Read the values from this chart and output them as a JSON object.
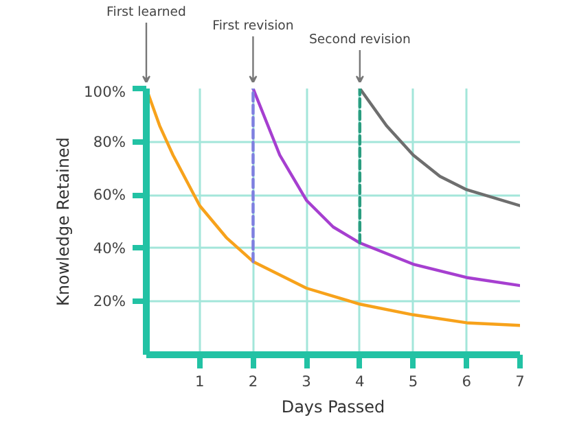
{
  "chart_data": {
    "type": "line",
    "xlabel": "Days Passed",
    "ylabel": "Knowledge Retained",
    "xlim": [
      0,
      7
    ],
    "ylim": [
      0,
      100
    ],
    "xticks": [
      1,
      2,
      3,
      4,
      5,
      6,
      7
    ],
    "yticks": [
      {
        "value": 20,
        "label": "20%"
      },
      {
        "value": 40,
        "label": "40%"
      },
      {
        "value": 60,
        "label": "60%"
      },
      {
        "value": 80,
        "label": "80%"
      },
      {
        "value": 100,
        "label": "100%"
      }
    ],
    "grid": true,
    "series": [
      {
        "color": "#f7a21b",
        "x": [
          0,
          0.25,
          0.5,
          1,
          1.5,
          2,
          3,
          4,
          5,
          6,
          7
        ],
        "values": [
          100,
          86,
          75,
          56,
          44,
          35,
          25,
          19,
          15,
          12,
          11
        ]
      },
      {
        "color": "#a63fd0",
        "x": [
          2,
          2.5,
          3,
          3.5,
          4,
          5,
          6,
          7
        ],
        "values": [
          100,
          75,
          58,
          48,
          42,
          34,
          29,
          26
        ]
      },
      {
        "color": "#6e6e6e",
        "x": [
          4,
          4.5,
          5,
          5.5,
          6,
          7
        ],
        "values": [
          100,
          86,
          75,
          67,
          62,
          56
        ]
      },
      {
        "color": "#7f7fe0",
        "line_style": "dashed",
        "x": [
          2,
          2
        ],
        "values": [
          35,
          100
        ]
      },
      {
        "color": "#2a9d80",
        "line_style": "dashed",
        "x": [
          4,
          4
        ],
        "values": [
          42,
          100
        ]
      }
    ],
    "annotations": [
      {
        "text": "First learned",
        "x": 0,
        "y": 100
      },
      {
        "text": "First revision",
        "x": 2,
        "y": 100
      },
      {
        "text": "Second revision",
        "x": 4,
        "y": 100
      }
    ]
  }
}
